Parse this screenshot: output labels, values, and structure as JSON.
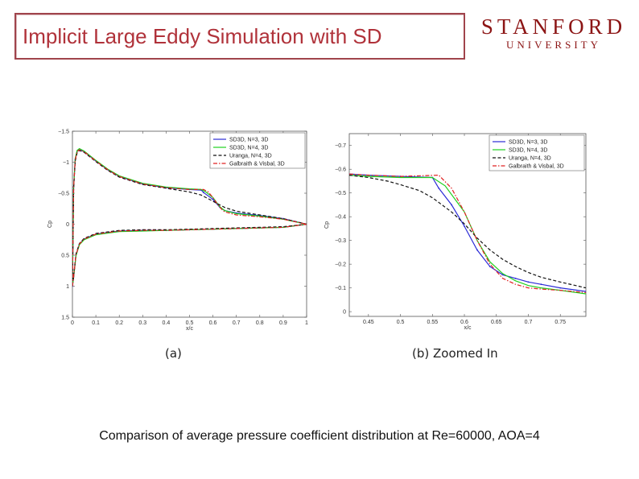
{
  "header": {
    "title": "Implicit Large Eddy Simulation with SD"
  },
  "logo": {
    "name": "STANFORD",
    "sub": "UNIVERSITY",
    "color": "#8c1515"
  },
  "figures": {
    "a_label": "(a)",
    "b_label": "(b)  Zoomed  In"
  },
  "caption": "Comparison of average pressure coefficient distribution at Re=60000, AOA=4",
  "chart_data": [
    {
      "type": "line",
      "title": "",
      "xlabel": "x/c",
      "ylabel": "Cp",
      "xlim": [
        0,
        1
      ],
      "ylim": [
        -1.5,
        1.5
      ],
      "y_reversed": true,
      "xticks": [
        0,
        0.1,
        0.2,
        0.3,
        0.4,
        0.5,
        0.6,
        0.7,
        0.8,
        0.9,
        1
      ],
      "xtick_labels": [
        "0",
        "0.1",
        "0.2",
        "0.3",
        "0.4",
        "0.5",
        "0.6",
        "0.7",
        "0.8",
        "0.9",
        "1"
      ],
      "yticks": [
        -1.5,
        -1,
        -0.5,
        0,
        0.5,
        1,
        1.5
      ],
      "ytick_labels": [
        "−1.5",
        "−1",
        "−0.5",
        "0",
        "0.5",
        "1",
        "1.5"
      ],
      "legend_position": "top-right",
      "series": [
        {
          "name": "SD3D, N=3, 3D",
          "color": "#2b2bd6",
          "dash": "solid",
          "marker": "dot",
          "upper": [
            [
              0.0,
              1.0
            ],
            [
              0.005,
              -0.6
            ],
            [
              0.012,
              -1.05
            ],
            [
              0.02,
              -1.18
            ],
            [
              0.03,
              -1.21
            ],
            [
              0.05,
              -1.17
            ],
            [
              0.1,
              -1.02
            ],
            [
              0.15,
              -0.88
            ],
            [
              0.2,
              -0.77
            ],
            [
              0.3,
              -0.65
            ],
            [
              0.4,
              -0.59
            ],
            [
              0.5,
              -0.56
            ],
            [
              0.55,
              -0.55
            ],
            [
              0.56,
              -0.51
            ],
            [
              0.6,
              -0.4
            ],
            [
              0.63,
              -0.27
            ],
            [
              0.65,
              -0.22
            ],
            [
              0.7,
              -0.18
            ],
            [
              0.8,
              -0.14
            ],
            [
              0.9,
              -0.09
            ],
            [
              1.0,
              0.0
            ]
          ],
          "lower": [
            [
              0.0,
              1.0
            ],
            [
              0.005,
              0.85
            ],
            [
              0.015,
              0.5
            ],
            [
              0.03,
              0.32
            ],
            [
              0.05,
              0.24
            ],
            [
              0.1,
              0.16
            ],
            [
              0.2,
              0.11
            ],
            [
              0.3,
              0.1
            ],
            [
              0.4,
              0.1
            ],
            [
              0.5,
              0.09
            ],
            [
              0.6,
              0.08
            ],
            [
              0.7,
              0.07
            ],
            [
              0.8,
              0.06
            ],
            [
              0.9,
              0.05
            ],
            [
              1.0,
              0.0
            ]
          ]
        },
        {
          "name": "SD3D, N=4, 3D",
          "color": "#1fd11f",
          "dash": "solid",
          "marker": "none",
          "upper": [
            [
              0.0,
              1.0
            ],
            [
              0.005,
              -0.6
            ],
            [
              0.012,
              -1.06
            ],
            [
              0.02,
              -1.19
            ],
            [
              0.03,
              -1.22
            ],
            [
              0.05,
              -1.18
            ],
            [
              0.1,
              -1.03
            ],
            [
              0.15,
              -0.89
            ],
            [
              0.2,
              -0.78
            ],
            [
              0.3,
              -0.66
            ],
            [
              0.4,
              -0.6
            ],
            [
              0.5,
              -0.57
            ],
            [
              0.55,
              -0.56
            ],
            [
              0.57,
              -0.52
            ],
            [
              0.6,
              -0.43
            ],
            [
              0.63,
              -0.28
            ],
            [
              0.65,
              -0.22
            ],
            [
              0.7,
              -0.17
            ],
            [
              0.8,
              -0.13
            ],
            [
              0.9,
              -0.08
            ],
            [
              1.0,
              0.0
            ]
          ],
          "lower": [
            [
              0.0,
              1.0
            ],
            [
              0.005,
              0.86
            ],
            [
              0.015,
              0.51
            ],
            [
              0.03,
              0.33
            ],
            [
              0.05,
              0.25
            ],
            [
              0.1,
              0.17
            ],
            [
              0.2,
              0.12
            ],
            [
              0.3,
              0.11
            ],
            [
              0.4,
              0.1
            ],
            [
              0.5,
              0.09
            ],
            [
              0.6,
              0.08
            ],
            [
              0.7,
              0.07
            ],
            [
              0.8,
              0.06
            ],
            [
              0.9,
              0.05
            ],
            [
              1.0,
              0.0
            ]
          ]
        },
        {
          "name": "Uranga, N=4, 3D",
          "color": "#111111",
          "dash": "dashed",
          "marker": "none",
          "upper": [
            [
              0.0,
              1.0
            ],
            [
              0.005,
              -0.58
            ],
            [
              0.012,
              -1.02
            ],
            [
              0.02,
              -1.15
            ],
            [
              0.03,
              -1.19
            ],
            [
              0.05,
              -1.16
            ],
            [
              0.1,
              -1.01
            ],
            [
              0.15,
              -0.87
            ],
            [
              0.2,
              -0.76
            ],
            [
              0.3,
              -0.64
            ],
            [
              0.4,
              -0.58
            ],
            [
              0.5,
              -0.52
            ],
            [
              0.55,
              -0.47
            ],
            [
              0.6,
              -0.37
            ],
            [
              0.65,
              -0.27
            ],
            [
              0.7,
              -0.21
            ],
            [
              0.8,
              -0.15
            ],
            [
              0.9,
              -0.09
            ],
            [
              1.0,
              0.0
            ]
          ],
          "lower": [
            [
              0.0,
              1.0
            ],
            [
              0.005,
              0.83
            ],
            [
              0.015,
              0.48
            ],
            [
              0.03,
              0.31
            ],
            [
              0.05,
              0.23
            ],
            [
              0.1,
              0.15
            ],
            [
              0.2,
              0.1
            ],
            [
              0.3,
              0.09
            ],
            [
              0.4,
              0.09
            ],
            [
              0.5,
              0.08
            ],
            [
              0.6,
              0.07
            ],
            [
              0.7,
              0.06
            ],
            [
              0.8,
              0.05
            ],
            [
              0.9,
              0.04
            ],
            [
              1.0,
              0.0
            ]
          ]
        },
        {
          "name": "Galbraith & Visbal, 3D",
          "color": "#e02020",
          "dash": "dashdot",
          "marker": "none",
          "upper": [
            [
              0.0,
              1.0
            ],
            [
              0.005,
              -0.6
            ],
            [
              0.012,
              -1.04
            ],
            [
              0.02,
              -1.17
            ],
            [
              0.03,
              -1.2
            ],
            [
              0.05,
              -1.17
            ],
            [
              0.1,
              -1.02
            ],
            [
              0.15,
              -0.88
            ],
            [
              0.2,
              -0.77
            ],
            [
              0.3,
              -0.65
            ],
            [
              0.4,
              -0.59
            ],
            [
              0.5,
              -0.56
            ],
            [
              0.56,
              -0.56
            ],
            [
              0.58,
              -0.52
            ],
            [
              0.6,
              -0.43
            ],
            [
              0.62,
              -0.32
            ],
            [
              0.64,
              -0.23
            ],
            [
              0.65,
              -0.2
            ],
            [
              0.7,
              -0.15
            ],
            [
              0.8,
              -0.12
            ],
            [
              0.9,
              -0.08
            ],
            [
              1.0,
              0.0
            ]
          ],
          "lower": [
            [
              0.0,
              1.0
            ],
            [
              0.005,
              0.85
            ],
            [
              0.015,
              0.5
            ],
            [
              0.03,
              0.32
            ],
            [
              0.05,
              0.24
            ],
            [
              0.1,
              0.16
            ],
            [
              0.2,
              0.11
            ],
            [
              0.3,
              0.1
            ],
            [
              0.4,
              0.1
            ],
            [
              0.5,
              0.09
            ],
            [
              0.6,
              0.08
            ],
            [
              0.7,
              0.07
            ],
            [
              0.8,
              0.06
            ],
            [
              0.9,
              0.05
            ],
            [
              1.0,
              0.0
            ]
          ]
        }
      ]
    },
    {
      "type": "line",
      "title": "",
      "xlabel": "x/c",
      "ylabel": "Cp",
      "xlim": [
        0.42,
        0.79
      ],
      "ylim": [
        -0.75,
        0.02
      ],
      "y_reversed": true,
      "xticks": [
        0.45,
        0.5,
        0.55,
        0.6,
        0.65,
        0.7,
        0.75
      ],
      "xtick_labels": [
        "0.45",
        "0.5",
        "0.55",
        "0.6",
        "0.65",
        "0.7",
        "0.75"
      ],
      "yticks": [
        -0.7,
        -0.6,
        -0.5,
        -0.4,
        -0.3,
        -0.2,
        -0.1,
        0
      ],
      "ytick_labels": [
        "−0.7",
        "−0.6",
        "−0.5",
        "−0.4",
        "−0.3",
        "−0.2",
        "−0.1",
        "0"
      ],
      "legend_position": "top-right",
      "series": [
        {
          "name": "SD3D, N=3, 3D",
          "color": "#2b2bd6",
          "dash": "solid",
          "marker": "dot",
          "points": [
            [
              0.42,
              -0.58
            ],
            [
              0.45,
              -0.575
            ],
            [
              0.5,
              -0.57
            ],
            [
              0.55,
              -0.565
            ],
            [
              0.56,
              -0.52
            ],
            [
              0.58,
              -0.45
            ],
            [
              0.6,
              -0.36
            ],
            [
              0.62,
              -0.26
            ],
            [
              0.64,
              -0.19
            ],
            [
              0.66,
              -0.155
            ],
            [
              0.68,
              -0.14
            ],
            [
              0.7,
              -0.125
            ],
            [
              0.72,
              -0.115
            ],
            [
              0.75,
              -0.1
            ],
            [
              0.79,
              -0.085
            ]
          ]
        },
        {
          "name": "SD3D, N=4, 3D",
          "color": "#1fd11f",
          "dash": "solid",
          "marker": "none",
          "points": [
            [
              0.42,
              -0.575
            ],
            [
              0.45,
              -0.57
            ],
            [
              0.5,
              -0.565
            ],
            [
              0.55,
              -0.565
            ],
            [
              0.57,
              -0.53
            ],
            [
              0.6,
              -0.42
            ],
            [
              0.62,
              -0.3
            ],
            [
              0.64,
              -0.21
            ],
            [
              0.66,
              -0.16
            ],
            [
              0.68,
              -0.13
            ],
            [
              0.7,
              -0.11
            ],
            [
              0.72,
              -0.1
            ],
            [
              0.75,
              -0.09
            ],
            [
              0.79,
              -0.075
            ]
          ]
        },
        {
          "name": "Uranga, N=4, 3D",
          "color": "#111111",
          "dash": "dashed",
          "marker": "none",
          "points": [
            [
              0.42,
              -0.575
            ],
            [
              0.45,
              -0.565
            ],
            [
              0.48,
              -0.55
            ],
            [
              0.5,
              -0.535
            ],
            [
              0.53,
              -0.51
            ],
            [
              0.55,
              -0.48
            ],
            [
              0.58,
              -0.42
            ],
            [
              0.6,
              -0.37
            ],
            [
              0.62,
              -0.31
            ],
            [
              0.64,
              -0.26
            ],
            [
              0.66,
              -0.22
            ],
            [
              0.68,
              -0.19
            ],
            [
              0.7,
              -0.165
            ],
            [
              0.72,
              -0.145
            ],
            [
              0.75,
              -0.125
            ],
            [
              0.79,
              -0.1
            ]
          ]
        },
        {
          "name": "Galbraith & Visbal, 3D",
          "color": "#e02020",
          "dash": "dashdot",
          "marker": "none",
          "points": [
            [
              0.42,
              -0.58
            ],
            [
              0.45,
              -0.575
            ],
            [
              0.5,
              -0.57
            ],
            [
              0.56,
              -0.575
            ],
            [
              0.58,
              -0.52
            ],
            [
              0.6,
              -0.42
            ],
            [
              0.62,
              -0.3
            ],
            [
              0.64,
              -0.2
            ],
            [
              0.66,
              -0.14
            ],
            [
              0.68,
              -0.115
            ],
            [
              0.7,
              -0.1
            ],
            [
              0.72,
              -0.095
            ],
            [
              0.75,
              -0.09
            ],
            [
              0.79,
              -0.08
            ]
          ]
        }
      ]
    }
  ]
}
